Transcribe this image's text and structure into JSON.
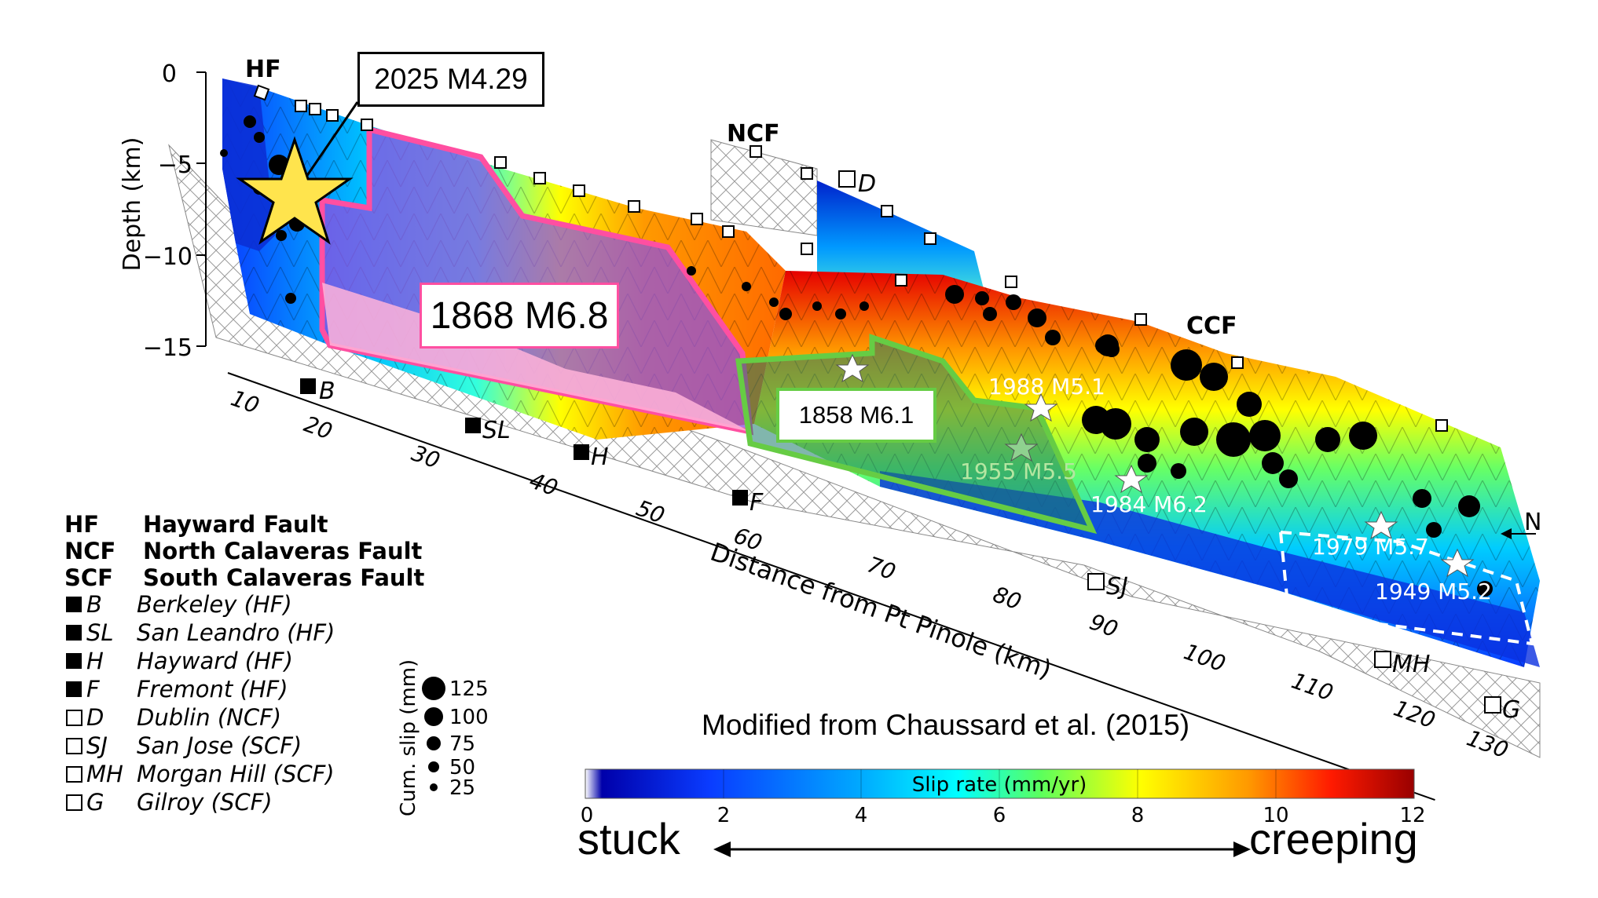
{
  "faults": {
    "hf": "HF",
    "ncf": "NCF",
    "ccf": "CCF"
  },
  "callouts": {
    "eq_2025": "2025 M4.29",
    "eq_1868": "1868 M6.8",
    "eq_1858": "1858 M6.1"
  },
  "events": {
    "e1988": "1988 M5.1",
    "e1955": "1955 M5.5",
    "e1984": "1984 M6.2",
    "e1979": "1979 M5.7",
    "e1949": "1949 M5.2"
  },
  "north": "N",
  "depth_axis": {
    "label": "Depth (km)",
    "ticks": [
      "0",
      "−5",
      "−10",
      "−15"
    ]
  },
  "distance_axis": {
    "label": "Distance from Pt Pinole (km)",
    "ticks": [
      "10",
      "20",
      "30",
      "40",
      "50",
      "60",
      "70",
      "80",
      "90",
      "100",
      "110",
      "120",
      "130"
    ]
  },
  "sites_on_map": {
    "b": "B",
    "sl": "SL",
    "h": "H",
    "f": "F",
    "d": "D",
    "sj": "SJ",
    "mh": "MH",
    "g": "G"
  },
  "legend": {
    "faults": [
      {
        "abbr": "HF",
        "name": "Hayward Fault"
      },
      {
        "abbr": "NCF",
        "name": "North Calaveras Fault"
      },
      {
        "abbr": "SCF",
        "name": "South Calaveras Fault"
      }
    ],
    "sites": [
      {
        "abbr": "B",
        "name": "Berkeley (HF)",
        "filled": true
      },
      {
        "abbr": "SL",
        "name": "San Leandro (HF)",
        "filled": true
      },
      {
        "abbr": "H",
        "name": "Hayward (HF)",
        "filled": true
      },
      {
        "abbr": "F",
        "name": "Fremont (HF)",
        "filled": true
      },
      {
        "abbr": "D",
        "name": "Dublin (NCF)",
        "filled": false
      },
      {
        "abbr": "SJ",
        "name": "San Jose (SCF)",
        "filled": false
      },
      {
        "abbr": "MH",
        "name": "Morgan Hill (SCF)",
        "filled": false
      },
      {
        "abbr": "G",
        "name": "Gilroy (SCF)",
        "filled": false
      }
    ]
  },
  "slip_legend": {
    "label": "Cum. slip (mm)",
    "values": [
      "125",
      "100",
      "75",
      "50",
      "25"
    ]
  },
  "colorbar": {
    "title": "Slip rate (mm/yr)",
    "ticks": [
      "0",
      "2",
      "4",
      "6",
      "8",
      "10",
      "12"
    ],
    "stops": [
      "#ffffff",
      "#0000aa",
      "#0a3cff",
      "#00a8ff",
      "#00ffff",
      "#5cff5c",
      "#ffff00",
      "#ff9900",
      "#ff1a00",
      "#990000"
    ]
  },
  "credit": "Modified from Chaussard et al. (2015)",
  "scale_words": {
    "left": "stuck",
    "right": "creeping"
  }
}
